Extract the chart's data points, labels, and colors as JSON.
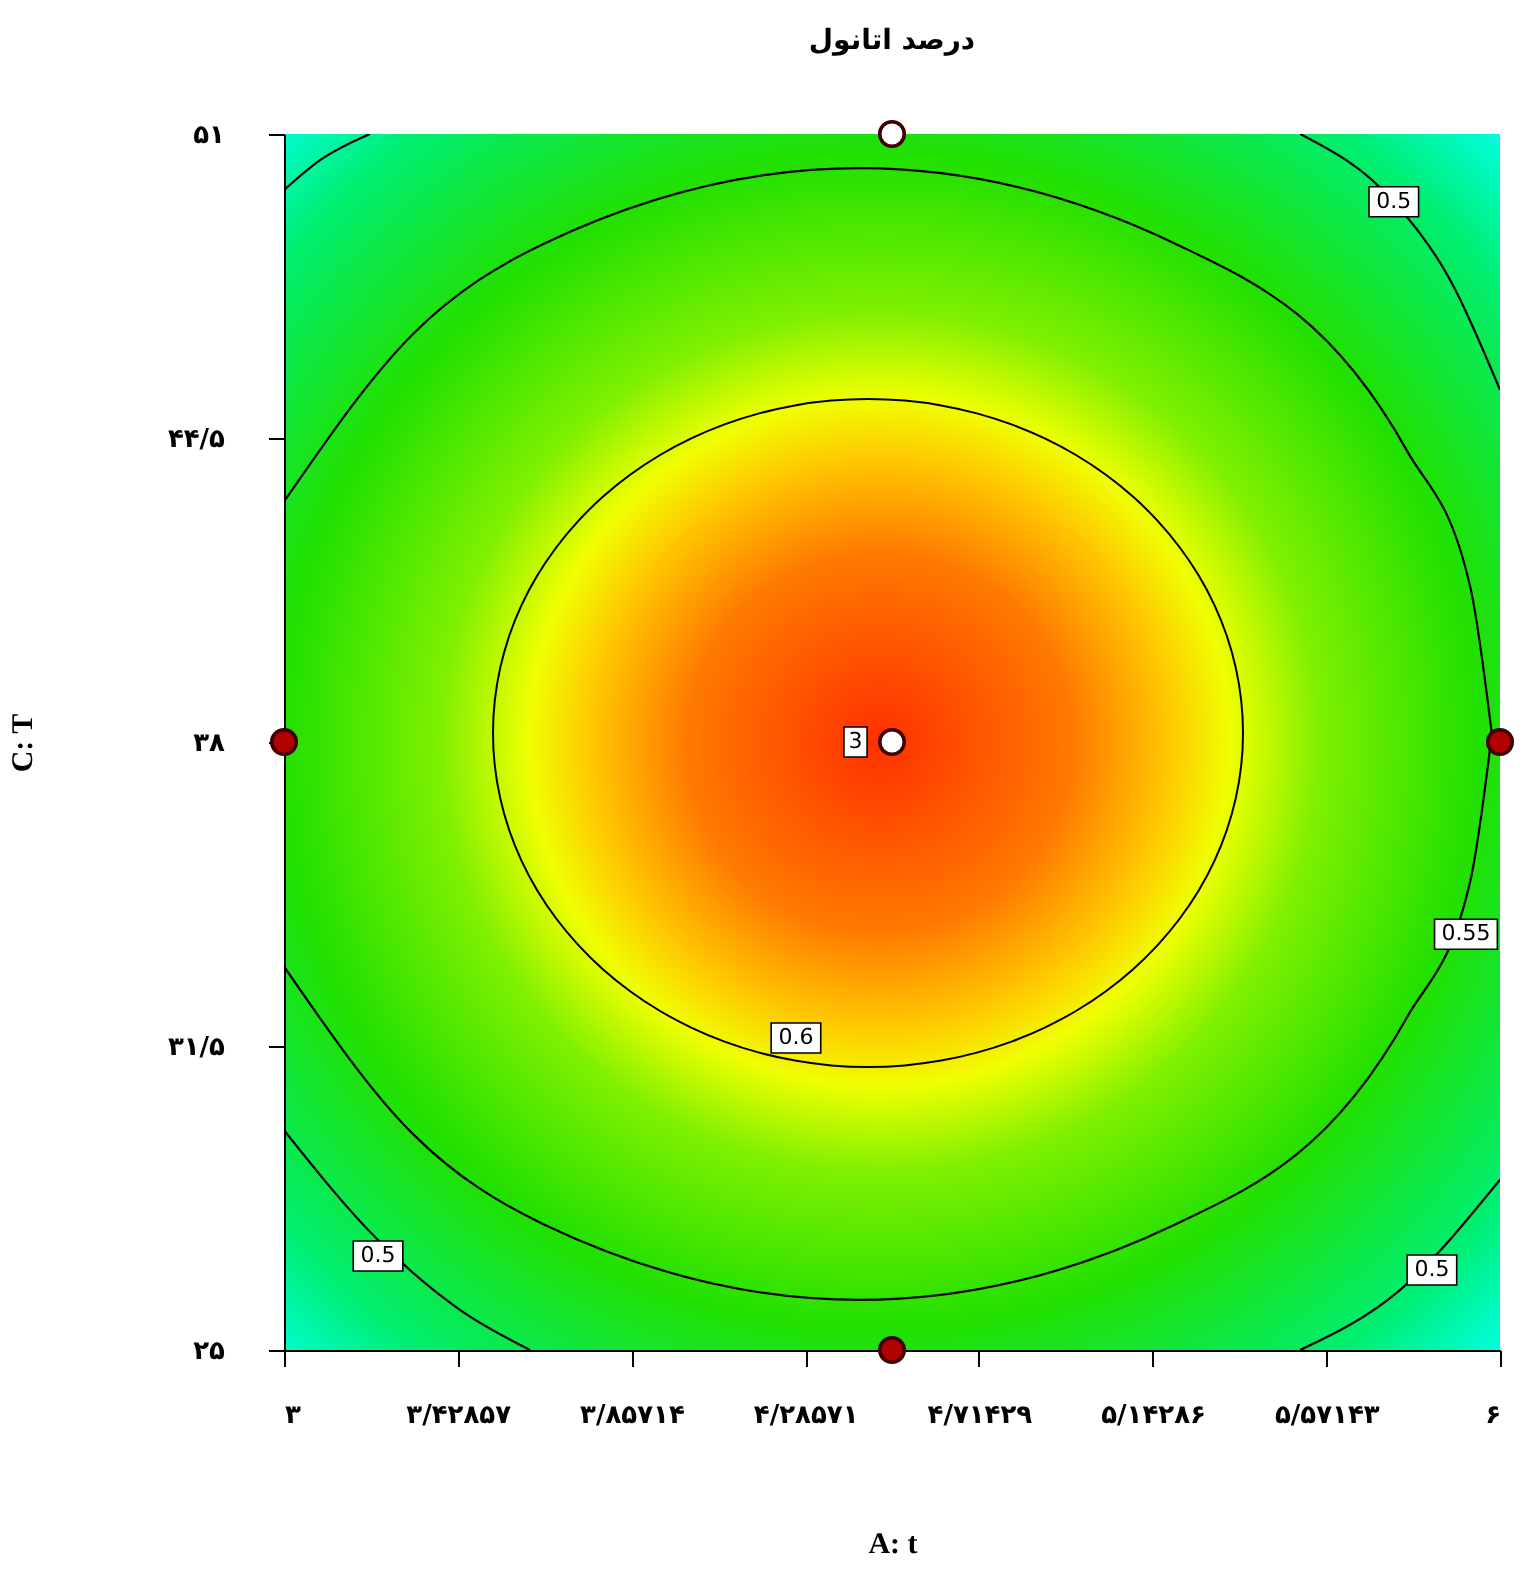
{
  "chart_data": {
    "type": "line",
    "title": "درصد اتانول",
    "xlabel": "A: t",
    "ylabel": "C: T",
    "xlim": [
      3,
      6
    ],
    "ylim": [
      25,
      51
    ],
    "xticks": [
      {
        "value": 3,
        "label": "۳"
      },
      {
        "value": 3.42857,
        "label": "۳/۴۲۸۵۷"
      },
      {
        "value": 3.85714,
        "label": "۳/۸۵۷۱۴"
      },
      {
        "value": 4.28571,
        "label": "۴/۲۸۵۷۱"
      },
      {
        "value": 4.71429,
        "label": "۴/۷۱۴۲۹"
      },
      {
        "value": 5.14286,
        "label": "۵/۱۴۲۸۶"
      },
      {
        "value": 5.57143,
        "label": "۵/۵۷۱۴۳"
      },
      {
        "value": 6,
        "label": "۶"
      }
    ],
    "yticks": [
      {
        "value": 25,
        "label": "۲۵"
      },
      {
        "value": 31.5,
        "label": "۳۱/۵"
      },
      {
        "value": 38,
        "label": "۳۸"
      },
      {
        "value": 44.5,
        "label": "۴۴/۵"
      },
      {
        "value": 51,
        "label": "۵۱"
      }
    ],
    "grid": false,
    "series": [
      {
        "color": "#000000",
        "x": [
          3,
          3.319,
          3.64,
          4.421,
          5.2,
          5.771,
          5.927,
          5.98
        ],
        "values": [
          43.14,
          46.73,
          48.65,
          50.27,
          48.65,
          44.22,
          41.3,
          38.17
        ]
      },
      {
        "color": "#000000",
        "x": [
          3,
          3.319,
          3.64,
          4.421,
          5.2,
          5.771,
          5.927,
          5.98
        ],
        "values": [
          33.2,
          29.61,
          27.69,
          26.07,
          27.69,
          32.12,
          35.04,
          38.17
        ]
      },
      {
        "color": "#000000",
        "x": [
          5.507,
          5.738,
          5.877,
          6
        ],
        "values": [
          51,
          49.55,
          47.88,
          45.53
        ]
      },
      {
        "color": "#000000",
        "x": [
          3,
          3.089,
          3.212
        ],
        "values": [
          49.8,
          50.44,
          51
        ]
      },
      {
        "color": "#000000",
        "x": [
          3,
          3.232,
          3.434,
          3.607
        ],
        "values": [
          29.7,
          27.35,
          25.86,
          25
        ]
      },
      {
        "color": "#000000",
        "x": [
          5.507,
          5.753,
          6
        ],
        "values": [
          25,
          26.28,
          28.64
        ]
      },
      {
        "type": "scatter",
        "color": "#b00000",
        "x": [
          3,
          6,
          4.5
        ],
        "values": [
          38,
          38,
          25
        ]
      },
      {
        "type": "scatter",
        "color": "#ffffff",
        "x": [
          4.5,
          4.5
        ],
        "values": [
          51,
          38
        ]
      }
    ],
    "annotations": [
      {
        "text": "0.5",
        "x": 5.738,
        "y": 49.55
      },
      {
        "text": "0.55",
        "x": 5.916,
        "y": 33.89
      },
      {
        "text": "0.6",
        "x": 4.263,
        "y": 31.67
      },
      {
        "text": "0.5",
        "x": 3.232,
        "y": 27.01
      },
      {
        "text": "0.5",
        "x": 5.832,
        "y": 26.71
      },
      {
        "text": "3",
        "x": 4.41,
        "y": 38
      }
    ]
  }
}
